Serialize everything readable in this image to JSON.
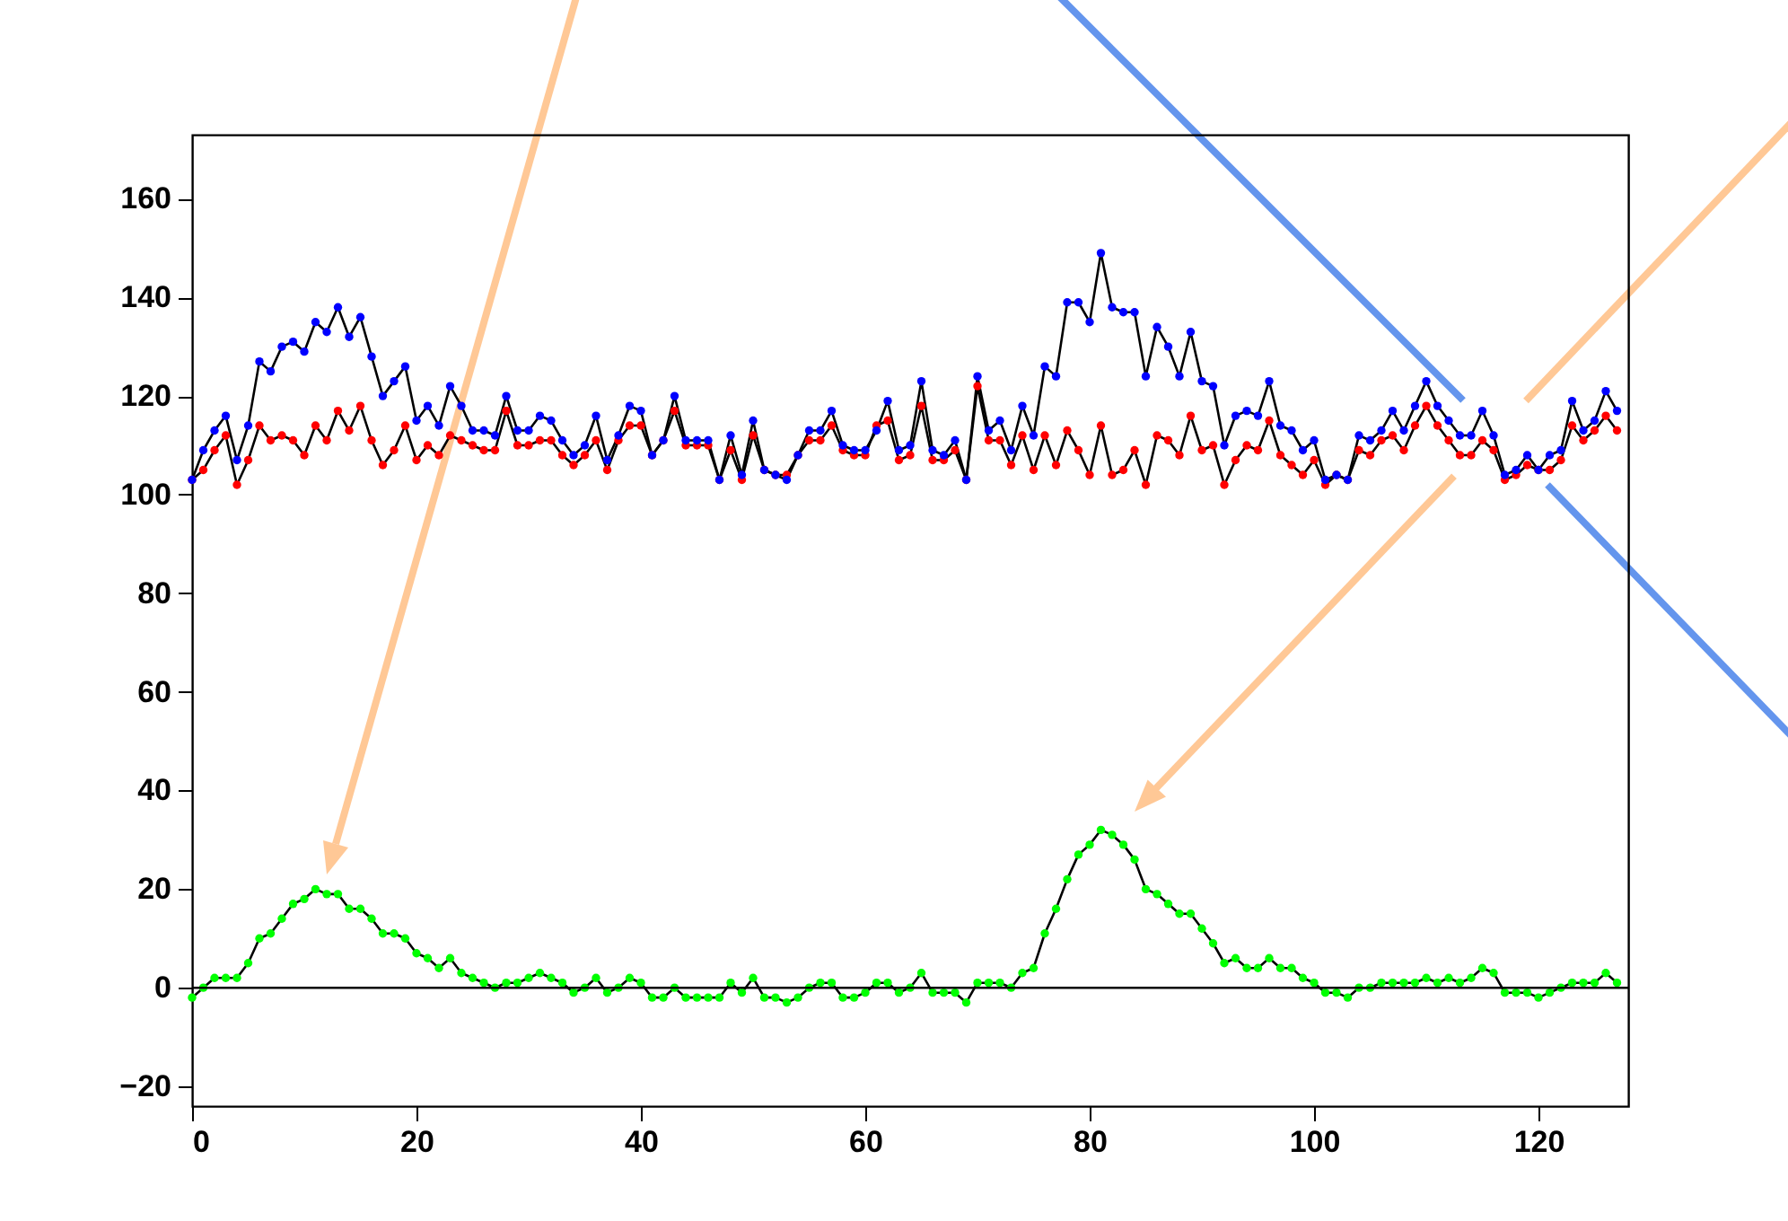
{
  "chart_data": {
    "type": "line",
    "marker": "circle",
    "xlim": [
      0,
      128
    ],
    "ylim": [
      -24,
      173
    ],
    "xticks": [
      0,
      20,
      40,
      60,
      80,
      100,
      120
    ],
    "yticks": [
      -20,
      0,
      20,
      40,
      60,
      80,
      100,
      120,
      140,
      160
    ],
    "x": [
      0,
      1,
      2,
      3,
      4,
      5,
      6,
      7,
      8,
      9,
      10,
      11,
      12,
      13,
      14,
      15,
      16,
      17,
      18,
      19,
      20,
      21,
      22,
      23,
      24,
      25,
      26,
      27,
      28,
      29,
      30,
      31,
      32,
      33,
      34,
      35,
      36,
      37,
      38,
      39,
      40,
      41,
      42,
      43,
      44,
      45,
      46,
      47,
      48,
      49,
      50,
      51,
      52,
      53,
      54,
      55,
      56,
      57,
      58,
      59,
      60,
      61,
      62,
      63,
      64,
      65,
      66,
      67,
      68,
      69,
      70,
      71,
      72,
      73,
      74,
      75,
      76,
      77,
      78,
      79,
      80,
      81,
      82,
      83,
      84,
      85,
      86,
      87,
      88,
      89,
      90,
      91,
      92,
      93,
      94,
      95,
      96,
      97,
      98,
      99,
      100,
      101,
      102,
      103,
      104,
      105,
      106,
      107,
      108,
      109,
      110,
      111,
      112,
      113,
      114,
      115,
      116,
      117,
      118,
      119,
      120,
      121,
      122,
      123,
      124,
      125,
      126,
      127
    ],
    "series": [
      {
        "color": "#ff0000",
        "values": [
          103,
          105,
          109,
          112,
          102,
          107,
          114,
          111,
          112,
          111,
          108,
          114,
          111,
          117,
          113,
          118,
          111,
          106,
          109,
          114,
          107,
          110,
          108,
          112,
          111,
          110,
          109,
          109,
          117,
          110,
          110,
          111,
          111,
          108,
          106,
          108,
          111,
          105,
          111,
          114,
          114,
          108,
          111,
          117,
          110,
          110,
          110,
          103,
          109,
          103,
          112,
          105,
          104,
          104,
          108,
          111,
          111,
          114,
          109,
          108,
          108,
          114,
          115,
          107,
          108,
          118,
          107,
          107,
          109,
          103,
          122,
          111,
          111,
          106,
          112,
          105,
          112,
          106,
          113,
          109,
          104,
          114,
          104,
          105,
          109,
          102,
          112,
          111,
          108,
          116,
          109,
          110,
          102,
          107,
          110,
          109,
          115,
          108,
          106,
          104,
          107,
          102,
          104,
          103,
          109,
          108,
          111,
          112,
          109,
          114,
          118,
          114,
          111,
          108,
          108,
          111,
          109,
          103,
          104,
          106,
          105,
          105,
          107,
          114,
          111,
          113,
          116,
          113
        ]
      },
      {
        "color": "#0000ff",
        "values": [
          103,
          109,
          113,
          116,
          107,
          114,
          127,
          125,
          130,
          131,
          129,
          135,
          133,
          138,
          132,
          136,
          128,
          120,
          123,
          126,
          115,
          118,
          114,
          122,
          118,
          113,
          113,
          112,
          120,
          113,
          113,
          116,
          115,
          111,
          108,
          110,
          116,
          107,
          112,
          118,
          117,
          108,
          111,
          120,
          111,
          111,
          111,
          103,
          112,
          104,
          115,
          105,
          104,
          103,
          108,
          113,
          113,
          117,
          110,
          109,
          109,
          113,
          119,
          109,
          110,
          123,
          109,
          108,
          111,
          103,
          124,
          113,
          115,
          109,
          118,
          112,
          126,
          124,
          139,
          139,
          135,
          149,
          138,
          137,
          137,
          124,
          134,
          130,
          124,
          133,
          123,
          122,
          110,
          116,
          117,
          116,
          123,
          114,
          113,
          109,
          111,
          103,
          104,
          103,
          112,
          111,
          113,
          117,
          113,
          118,
          123,
          118,
          115,
          112,
          112,
          117,
          112,
          104,
          105,
          108,
          105,
          108,
          109,
          119,
          113,
          115,
          121,
          117
        ]
      },
      {
        "color": "#00ff00",
        "values": [
          -2,
          0,
          2,
          2,
          2,
          5,
          10,
          11,
          14,
          17,
          18,
          20,
          19,
          19,
          16,
          16,
          14,
          11,
          11,
          10,
          7,
          6,
          4,
          6,
          3,
          2,
          1,
          0,
          1,
          1,
          2,
          3,
          2,
          1,
          -1,
          0,
          2,
          -1,
          0,
          2,
          1,
          -2,
          -2,
          0,
          -2,
          -2,
          -2,
          -2,
          1,
          -1,
          2,
          -2,
          -2,
          -3,
          -2,
          0,
          1,
          1,
          -2,
          -2,
          -1,
          1,
          1,
          -1,
          0,
          3,
          -1,
          -1,
          -1,
          -3,
          1,
          1,
          1,
          0,
          3,
          4,
          11,
          16,
          22,
          27,
          29,
          32,
          31,
          29,
          26,
          20,
          19,
          17,
          15,
          15,
          12,
          9,
          5,
          6,
          4,
          4,
          6,
          4,
          4,
          2,
          1,
          -1,
          -1,
          -2,
          0,
          0,
          1,
          1,
          1,
          1,
          2,
          1,
          2,
          1,
          2,
          4,
          3,
          -1,
          -1,
          -1,
          -2,
          -1,
          0,
          1,
          1,
          1,
          3,
          1
        ]
      }
    ],
    "ref_lines": [
      {
        "axis": "y",
        "value": 0
      }
    ]
  }
}
